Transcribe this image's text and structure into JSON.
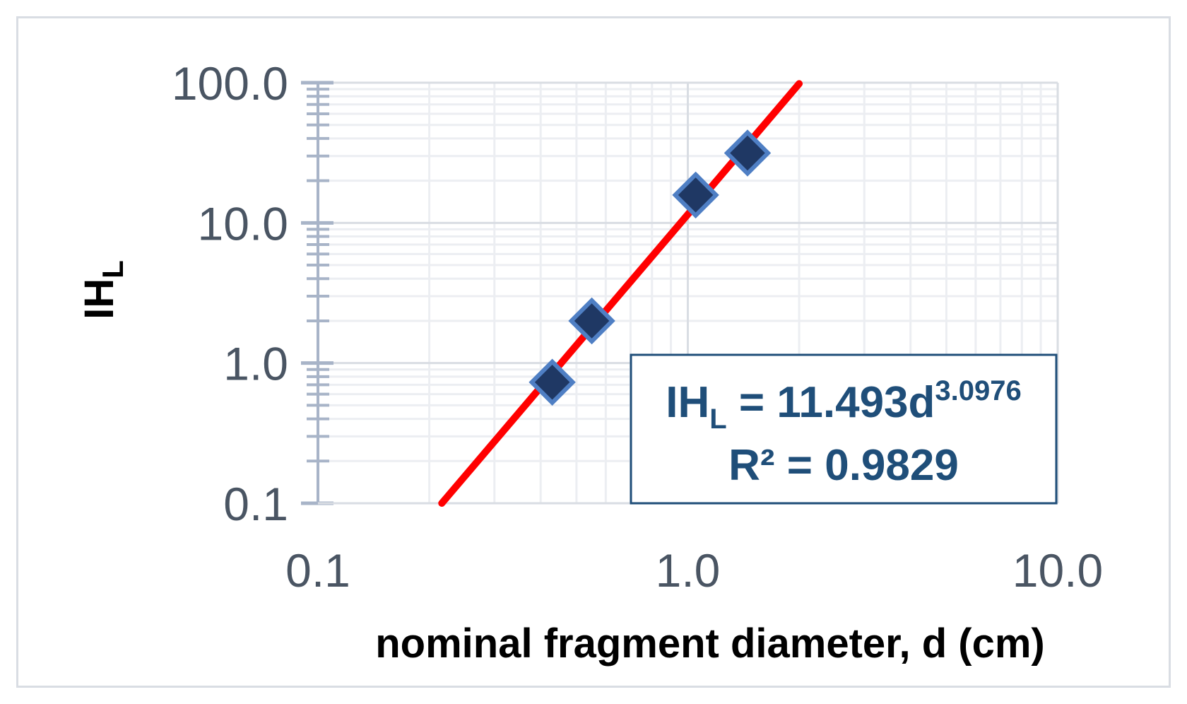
{
  "chart_data": {
    "type": "scatter",
    "xlabel": "nominal fragment diameter, d (cm)",
    "ylabel": {
      "main": "IH",
      "sub": "L"
    },
    "x_scale": "log",
    "y_scale": "log",
    "xlim": [
      0.1,
      10
    ],
    "ylim": [
      0.1,
      100
    ],
    "x_ticks": [
      {
        "value": 0.1,
        "label": "0.1"
      },
      {
        "value": 1,
        "label": "1.0"
      },
      {
        "value": 10,
        "label": "10.0"
      }
    ],
    "y_ticks": [
      {
        "value": 0.1,
        "label": "0.1"
      },
      {
        "value": 1,
        "label": "1.0"
      },
      {
        "value": 10,
        "label": "10.0"
      },
      {
        "value": 100,
        "label": "100.0"
      }
    ],
    "grid": true,
    "series": [
      {
        "points": [
          {
            "x": 0.43,
            "y": 0.73
          },
          {
            "x": 0.55,
            "y": 2.0
          },
          {
            "x": 1.05,
            "y": 15.8
          },
          {
            "x": 1.45,
            "y": 31.5
          }
        ],
        "marker": "diamond",
        "color": "#2e5a9c"
      }
    ],
    "trendline": {
      "type": "power",
      "coefficient": 11.493,
      "exponent": 3.0976,
      "x_range": [
        0.2,
        2.0
      ],
      "color": "#ff0000"
    },
    "annotation": {
      "eq_main": "IH",
      "eq_sub": "L",
      "eq_mid": " = 11.493d",
      "eq_sup": "3.0976",
      "r2_text": "R² = 0.9829",
      "border_color": "#1f4e79"
    }
  }
}
